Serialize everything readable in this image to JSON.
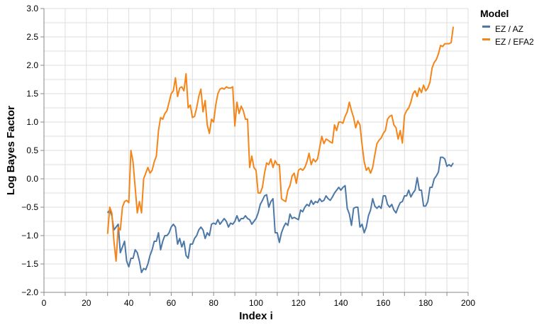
{
  "chart_data": {
    "type": "line",
    "xlabel": "Index i",
    "ylabel": "Log Bayes Factor",
    "xlim": [
      0,
      200
    ],
    "ylim": [
      -2.0,
      3.0
    ],
    "xticks": [
      0,
      20,
      40,
      60,
      80,
      100,
      120,
      140,
      160,
      180,
      200
    ],
    "xtick_labels": [
      "0",
      "20",
      "40",
      "60",
      "80",
      "100",
      "120",
      "140",
      "160",
      "180",
      "200"
    ],
    "yticks": [
      -2.0,
      -1.5,
      -1.0,
      -0.5,
      0.0,
      0.5,
      1.0,
      1.5,
      2.0,
      2.5,
      3.0
    ],
    "ytick_labels": [
      "−2.0",
      "−1.5",
      "−1.0",
      "−0.5",
      "0.0",
      "0.5",
      "1.0",
      "1.5",
      "2.0",
      "2.5",
      "3.0"
    ],
    "grid": true,
    "legend": {
      "title": "Model",
      "position": "right"
    },
    "x_start": 30,
    "series": [
      {
        "name": "EZ / AZ",
        "color": "#4c78a8",
        "values": [
          -0.6,
          -0.55,
          -0.65,
          -0.9,
          -0.85,
          -0.8,
          -1.3,
          -1.2,
          -1.1,
          -1.45,
          -1.55,
          -1.4,
          -1.4,
          -1.25,
          -1.3,
          -1.45,
          -1.65,
          -1.58,
          -1.6,
          -1.5,
          -1.35,
          -1.25,
          -1.1,
          -1.1,
          -0.95,
          -1.25,
          -1.1,
          -1.0,
          -1.0,
          -0.95,
          -0.85,
          -0.8,
          -0.85,
          -1.15,
          -1.05,
          -1.2,
          -1.1,
          -1.35,
          -1.4,
          -1.15,
          -1.15,
          -1.05,
          -1.0,
          -0.9,
          -0.85,
          -0.9,
          -1.05,
          -0.95,
          -1.0,
          -0.8,
          -0.78,
          -0.8,
          -0.72,
          -0.8,
          -0.75,
          -0.7,
          -0.75,
          -0.85,
          -0.78,
          -0.8,
          -0.75,
          -0.65,
          -0.75,
          -0.7,
          -0.7,
          -0.65,
          -0.7,
          -0.72,
          -0.8,
          -0.75,
          -0.7,
          -0.6,
          -0.45,
          -0.38,
          -0.3,
          -0.28,
          -0.5,
          -0.4,
          -0.35,
          -0.95,
          -0.95,
          -1.12,
          -0.95,
          -0.85,
          -0.78,
          -0.82,
          -0.62,
          -0.7,
          -0.68,
          -0.7,
          -0.72,
          -0.55,
          -0.58,
          -0.5,
          -0.45,
          -0.48,
          -0.38,
          -0.45,
          -0.4,
          -0.42,
          -0.35,
          -0.4,
          -0.38,
          -0.3,
          -0.35,
          -0.38,
          -0.32,
          -0.25,
          -0.2,
          -0.15,
          -0.2,
          -0.15,
          -0.12,
          -0.52,
          -0.62,
          -0.82,
          -0.52,
          -0.5,
          -0.5,
          -0.85,
          -0.8,
          -0.95,
          -0.85,
          -0.65,
          -0.55,
          -0.35,
          -0.48,
          -0.52,
          -0.48,
          -0.52,
          -0.3,
          -0.3,
          -0.45,
          -0.5,
          -0.45,
          -0.55,
          -0.6,
          -0.5,
          -0.42,
          -0.4,
          -0.3,
          -0.3,
          -0.2,
          -0.32,
          -0.25,
          -0.2,
          0.02,
          -0.2,
          -0.2,
          -0.48,
          -0.48,
          -0.4,
          -0.15,
          -0.15,
          0.0,
          0.05,
          0.12,
          0.38,
          0.38,
          0.35,
          0.22,
          0.25,
          0.22,
          0.28
        ],
        "note_x_range": [
          30,
          200
        ]
      },
      {
        "name": "EZ / EFA2",
        "color": "#f58518",
        "values": [
          -0.97,
          -0.5,
          -0.6,
          -1.1,
          -1.45,
          -0.85,
          -0.9,
          -0.5,
          -0.4,
          -0.38,
          -0.42,
          0.5,
          0.3,
          -0.15,
          -0.6,
          -0.4,
          -0.6,
          0.0,
          0.1,
          0.2,
          0.1,
          0.15,
          0.3,
          0.4,
          0.85,
          1.08,
          1.05,
          1.15,
          1.2,
          1.35,
          1.5,
          1.55,
          1.78,
          1.45,
          1.6,
          1.62,
          1.55,
          1.85,
          1.25,
          1.3,
          1.08,
          1.1,
          1.25,
          1.45,
          1.58,
          1.18,
          1.38,
          0.95,
          0.8,
          1.05,
          1.0,
          1.3,
          1.5,
          1.58,
          1.6,
          1.58,
          1.62,
          1.6,
          1.6,
          1.62,
          0.93,
          1.35,
          1.15,
          1.28,
          1.2,
          1.05,
          1.05,
          0.2,
          0.4,
          0.2,
          0.15,
          -0.25,
          -0.25,
          -0.15,
          0.1,
          0.28,
          0.25,
          0.35,
          0.2,
          0.32,
          0.25,
          0.25,
          -0.35,
          -0.38,
          -0.4,
          -0.2,
          -0.12,
          0.05,
          0.1,
          -0.08,
          0.15,
          0.18,
          0.15,
          0.2,
          0.3,
          0.45,
          0.25,
          0.35,
          0.3,
          0.35,
          0.55,
          0.75,
          0.62,
          0.7,
          0.68,
          0.65,
          0.63,
          0.95,
          0.85,
          1.0,
          1.0,
          0.98,
          1.1,
          1.18,
          1.35,
          1.2,
          1.08,
          0.9,
          1.02,
          0.95,
          0.6,
          0.3,
          0.15,
          0.2,
          0.1,
          0.2,
          0.42,
          0.62,
          0.68,
          0.72,
          0.8,
          0.85,
          1.05,
          1.1,
          1.12,
          0.95,
          0.9,
          0.7,
          0.85,
          0.63,
          1.12,
          1.2,
          1.25,
          1.35,
          1.5,
          1.55,
          1.45,
          1.6,
          1.52,
          1.65,
          1.55,
          1.6,
          1.7,
          1.95,
          2.05,
          2.1,
          2.2,
          2.35,
          2.33,
          2.38,
          2.38,
          2.38,
          2.4,
          2.68
        ]
      }
    ]
  }
}
